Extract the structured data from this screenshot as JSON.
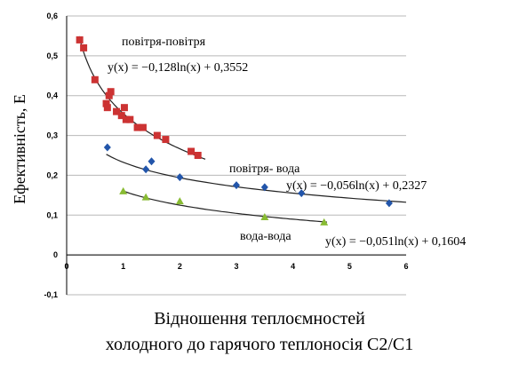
{
  "chart_data": {
    "type": "scatter",
    "xlim": [
      0,
      6
    ],
    "ylim": [
      -0.1,
      0.6
    ],
    "x_ticks": [
      "0",
      "1",
      "2",
      "3",
      "4",
      "5",
      "6"
    ],
    "y_ticks": [
      "0,6",
      "0,5",
      "0,4",
      "0,3",
      "0,2",
      "0,1",
      "0",
      "-0,1"
    ],
    "grid": true,
    "ylabel": "Ефективність, E",
    "xlabel_lines": [
      "Відношення теплоємностей",
      "холодного до гарячого теплоносія C2/C1"
    ],
    "series": [
      {
        "name": "повітря-повітря",
        "marker": "square",
        "color": "#cc3333",
        "trend_formula": "y(x) = −0,128ln(x) + 0,3552",
        "trend": {
          "a": -0.128,
          "b": 0.3552,
          "x_range": [
            0.22,
            2.45
          ]
        },
        "points": [
          {
            "x": 0.23,
            "y": 0.54
          },
          {
            "x": 0.3,
            "y": 0.52
          },
          {
            "x": 0.5,
            "y": 0.44
          },
          {
            "x": 0.7,
            "y": 0.38
          },
          {
            "x": 0.72,
            "y": 0.37
          },
          {
            "x": 0.75,
            "y": 0.4
          },
          {
            "x": 0.78,
            "y": 0.41
          },
          {
            "x": 0.88,
            "y": 0.36
          },
          {
            "x": 0.97,
            "y": 0.35
          },
          {
            "x": 1.02,
            "y": 0.37
          },
          {
            "x": 1.05,
            "y": 0.34
          },
          {
            "x": 1.12,
            "y": 0.34
          },
          {
            "x": 1.25,
            "y": 0.32
          },
          {
            "x": 1.35,
            "y": 0.32
          },
          {
            "x": 1.6,
            "y": 0.3
          },
          {
            "x": 1.75,
            "y": 0.29
          },
          {
            "x": 2.2,
            "y": 0.26
          },
          {
            "x": 2.32,
            "y": 0.25
          }
        ]
      },
      {
        "name": "повітря- вода",
        "marker": "diamond",
        "color": "#2255aa",
        "trend_formula": "y(x) = −0,056ln(x) + 0,2327",
        "trend": {
          "a": -0.056,
          "b": 0.2327,
          "x_range": [
            0.7,
            6.0
          ]
        },
        "points": [
          {
            "x": 0.72,
            "y": 0.27
          },
          {
            "x": 1.4,
            "y": 0.215
          },
          {
            "x": 1.5,
            "y": 0.235
          },
          {
            "x": 2.0,
            "y": 0.195
          },
          {
            "x": 3.0,
            "y": 0.175
          },
          {
            "x": 3.5,
            "y": 0.17
          },
          {
            "x": 4.15,
            "y": 0.155
          },
          {
            "x": 5.7,
            "y": 0.13
          }
        ]
      },
      {
        "name": "вода-вода",
        "marker": "triangle",
        "color": "#88bb33",
        "trend_formula": "y(x) = −0,051ln(x) + 0,1604",
        "trend": {
          "a": -0.051,
          "b": 0.1604,
          "x_range": [
            1.0,
            4.6
          ]
        },
        "points": [
          {
            "x": 1.0,
            "y": 0.16
          },
          {
            "x": 1.4,
            "y": 0.145
          },
          {
            "x": 2.0,
            "y": 0.135
          },
          {
            "x": 3.5,
            "y": 0.095
          },
          {
            "x": 4.55,
            "y": 0.082
          }
        ]
      }
    ]
  }
}
